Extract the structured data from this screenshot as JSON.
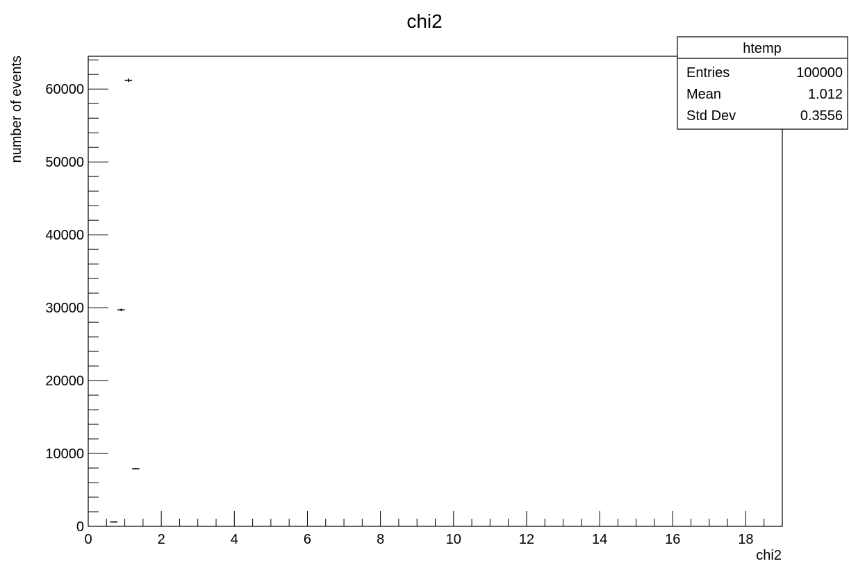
{
  "chart_data": {
    "type": "scatter",
    "title": "chi2",
    "xlabel": "chi2",
    "ylabel": "number of events",
    "xlim": [
      0,
      19
    ],
    "ylim": [
      0,
      64500
    ],
    "x_ticks": [
      "0",
      "2",
      "4",
      "6",
      "8",
      "10",
      "12",
      "14",
      "16",
      "18"
    ],
    "y_ticks": [
      "0",
      "10000",
      "20000",
      "30000",
      "40000",
      "50000",
      "60000"
    ],
    "grid": false,
    "bin_width": 0.2,
    "points": [
      {
        "x": 0.7,
        "y": 600
      },
      {
        "x": 0.9,
        "y": 29700
      },
      {
        "x": 1.1,
        "y": 61200
      },
      {
        "x": 1.3,
        "y": 7900
      }
    ],
    "stats_box": {
      "name": "htemp",
      "rows": [
        {
          "label": "Entries",
          "value": "100000"
        },
        {
          "label": "Mean",
          "value": "1.012"
        },
        {
          "label": "Std Dev",
          "value": "0.3556"
        }
      ],
      "placement": "top-right"
    }
  }
}
